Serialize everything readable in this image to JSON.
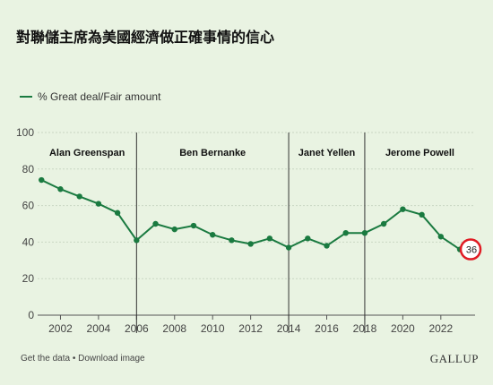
{
  "title": "對聯儲主席為美國經濟做正確事情的信心",
  "footer": {
    "left": "Get the data • Download image",
    "brand": "GALLUP"
  },
  "colors": {
    "line": "#1a7a40",
    "highlight": "#e01b24",
    "background": "#e9f3e2"
  },
  "chart_data": {
    "type": "line",
    "title": "對聯儲主席為美國經濟做正確事情的信心",
    "xlabel": "",
    "ylabel": "",
    "ylim": [
      0,
      100
    ],
    "xlim": [
      2000.8,
      2023.8
    ],
    "y_ticks": [
      0,
      20,
      40,
      60,
      80,
      100
    ],
    "x_ticks": [
      2002,
      2004,
      2006,
      2008,
      2010,
      2012,
      2014,
      2016,
      2018,
      2020,
      2022
    ],
    "grid": true,
    "legend_placement": "top-left",
    "series": [
      {
        "name": "% Great deal/Fair amount",
        "x": [
          2001,
          2002,
          2003,
          2004,
          2005,
          2006,
          2007,
          2008,
          2009,
          2010,
          2011,
          2012,
          2013,
          2014,
          2015,
          2016,
          2017,
          2018,
          2019,
          2020,
          2021,
          2022,
          2023
        ],
        "values": [
          74,
          69,
          65,
          61,
          56,
          41,
          50,
          47,
          49,
          44,
          41,
          39,
          42,
          37,
          42,
          38,
          45,
          45,
          50,
          58,
          55,
          43,
          36
        ]
      }
    ],
    "eras": [
      {
        "label": "Alan Greenspan",
        "start": 2000.8,
        "end": 2006
      },
      {
        "label": "Ben Bernanke",
        "start": 2006,
        "end": 2014
      },
      {
        "label": "Janet Yellen",
        "start": 2014,
        "end": 2018
      },
      {
        "label": "Jerome Powell",
        "start": 2018,
        "end": 2023.8
      }
    ],
    "annotations": [
      {
        "x": 2023,
        "value": 36,
        "label": "36",
        "style": "red-circle"
      }
    ]
  }
}
